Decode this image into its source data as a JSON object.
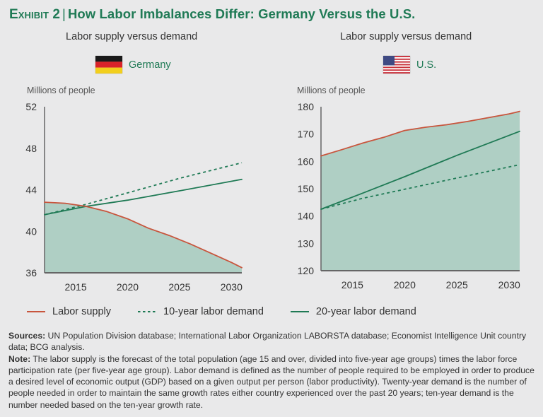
{
  "header": {
    "exhibit_label": "Exhibit 2",
    "title": "How Labor Imbalances Differ: Germany Versus the U.S.",
    "colors": {
      "title": "#1f7a55"
    }
  },
  "legend": {
    "items": [
      {
        "label": "Labor supply",
        "style": "solid",
        "color": "#c8553d"
      },
      {
        "label": "10-year labor demand",
        "style": "dashed",
        "color": "#1f7a55"
      },
      {
        "label": "20-year labor demand",
        "style": "solid",
        "color": "#1f7a55"
      }
    ]
  },
  "colors": {
    "supply": "#c8553d",
    "demand": "#1f7a55",
    "fill": "#afcfc4",
    "axis": "#666666"
  },
  "chart_data": [
    {
      "type": "area",
      "title": "Labor supply versus demand",
      "country": "Germany",
      "flag_icon": "germany-flag-icon",
      "ylabel": "Millions of people",
      "xlabel": "",
      "xlim": [
        2012,
        2031
      ],
      "ylim": [
        36,
        52
      ],
      "yticks": [
        52,
        48,
        44,
        40,
        36
      ],
      "xticks": [
        2015,
        2020,
        2025,
        2030
      ],
      "grid": false,
      "series": [
        {
          "name": "Labor supply",
          "style": "solid",
          "filled": true,
          "x": [
            2012,
            2014,
            2016,
            2018,
            2020,
            2022,
            2024,
            2026,
            2028,
            2030,
            2031
          ],
          "values": [
            42.8,
            42.7,
            42.4,
            41.9,
            41.2,
            40.3,
            39.6,
            38.8,
            37.9,
            37.0,
            36.5
          ]
        },
        {
          "name": "10-year labor demand",
          "style": "dashed",
          "x": [
            2012,
            2016,
            2020,
            2025,
            2031
          ],
          "values": [
            41.6,
            42.6,
            43.7,
            45.1,
            46.6
          ]
        },
        {
          "name": "20-year labor demand",
          "style": "solid",
          "x": [
            2012,
            2016,
            2020,
            2025,
            2031
          ],
          "values": [
            41.6,
            42.4,
            43.0,
            43.9,
            45.0
          ]
        }
      ]
    },
    {
      "type": "area",
      "title": "Labor supply versus demand",
      "country": "U.S.",
      "flag_icon": "us-flag-icon",
      "ylabel": "Millions of people",
      "xlabel": "",
      "xlim": [
        2012,
        2031
      ],
      "ylim": [
        120,
        180
      ],
      "yticks": [
        180,
        170,
        160,
        150,
        140,
        130,
        120
      ],
      "xticks": [
        2015,
        2020,
        2025,
        2030
      ],
      "grid": false,
      "series": [
        {
          "name": "Labor supply",
          "style": "solid",
          "filled": true,
          "x": [
            2012,
            2014,
            2016,
            2018,
            2020,
            2022,
            2024,
            2026,
            2028,
            2030,
            2031
          ],
          "values": [
            162.0,
            164.3,
            166.7,
            168.8,
            171.3,
            172.5,
            173.4,
            174.6,
            176.0,
            177.4,
            178.3
          ]
        },
        {
          "name": "10-year labor demand",
          "style": "dashed",
          "x": [
            2012,
            2016,
            2020,
            2025,
            2031
          ],
          "values": [
            142.5,
            146.5,
            149.8,
            153.9,
            158.8
          ]
        },
        {
          "name": "20-year labor demand",
          "style": "solid",
          "x": [
            2012,
            2016,
            2020,
            2025,
            2031
          ],
          "values": [
            142.5,
            148.4,
            154.4,
            162.2,
            171.0
          ]
        }
      ]
    }
  ],
  "footer": {
    "sources_label": "Sources:",
    "sources_text": " UN Population Division database; International Labor Organization LABORSTA database; Economist Intelligence Unit country data; BCG analysis.",
    "note_label": "Note:",
    "note_text": " The labor supply is the forecast of the total population (age 15 and over, divided into five-year age groups) times the labor force participation rate (per five-year age group). Labor demand is defined as the number of people required to be employed in order to produce a desired level of economic output (GDP) based on a given output per person (labor productivity). Twenty-year demand is the number of people needed in order to maintain the same growth rates either country experienced over the past 20 years; ten-year demand is the number needed based on the ten-year growth rate."
  }
}
